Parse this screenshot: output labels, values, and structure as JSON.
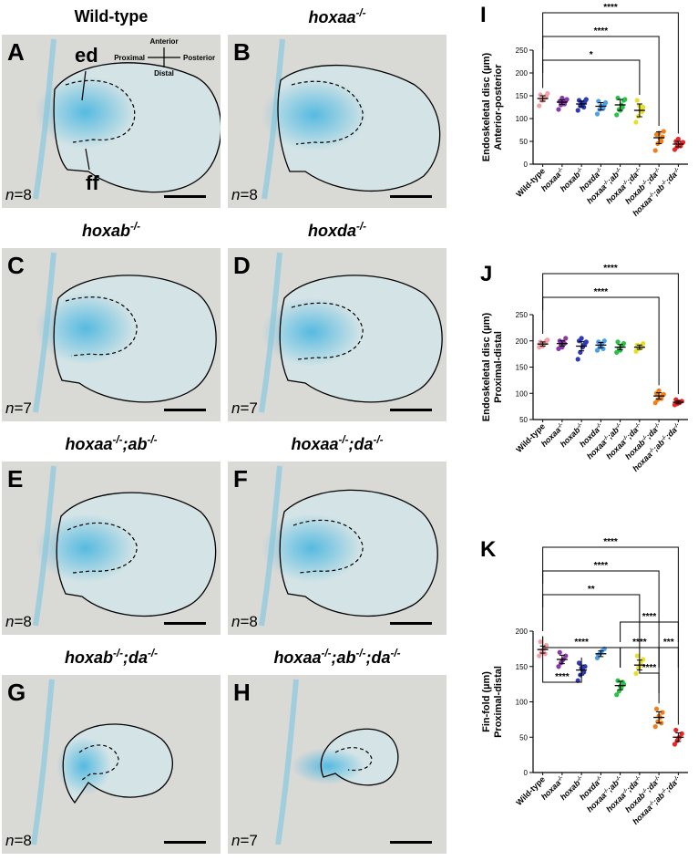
{
  "panels": [
    {
      "letter": "A",
      "title": "Wild-type",
      "italic": false,
      "n": "=8"
    },
    {
      "letter": "B",
      "title": "hoxaa",
      "sup": "-/-",
      "italic": true,
      "n": "=8"
    },
    {
      "letter": "C",
      "title": "hoxab",
      "sup": "-/-",
      "italic": true,
      "n": "=7"
    },
    {
      "letter": "D",
      "title": "hoxda",
      "sup": "-/-",
      "italic": true,
      "n": "=7"
    },
    {
      "letter": "E",
      "title": "hoxaa-/-;ab-/-",
      "italic": true,
      "n": "=8"
    },
    {
      "letter": "F",
      "title": "hoxaa-/-;da-/-",
      "italic": true,
      "n": "=8"
    },
    {
      "letter": "G",
      "title": "hoxab-/-;da-/-",
      "italic": true,
      "n": "=8"
    },
    {
      "letter": "H",
      "title": "hoxaa-/-;ab-/-;da-/-",
      "italic": true,
      "n": "=7"
    }
  ],
  "annotations": {
    "ed": "ed",
    "ff": "ff",
    "anterior": "Anterior",
    "posterior": "Posterior",
    "proximal": "Proximal",
    "distal": "Distal",
    "n_prefix": "n"
  },
  "genotypes": [
    "Wild-type",
    "hoxaa-/-",
    "hoxab-/-",
    "hoxda-/-",
    "hoxaa-/-;ab-/-",
    "hoxaa-/-;da-/-",
    "hoxab-/-;da-/-",
    "hoxaa-/-;ab-/-;da-/-"
  ],
  "colors": {
    "series": [
      "#f4a0a8",
      "#8a3aa6",
      "#2e3ab8",
      "#4ea0e6",
      "#2bc048",
      "#e6e02a",
      "#f0801c",
      "#e82828"
    ],
    "scalebar": "#000000",
    "stain": "#4fb8e0"
  },
  "chart_data": [
    {
      "letter": "I",
      "type": "scatter",
      "ylabel": "Endoskeletal disc (µm)",
      "ylabel2": "Anterior-posterior",
      "ylim": [
        0,
        250
      ],
      "yticks": [
        0,
        50,
        100,
        150,
        200,
        250
      ],
      "categories": [
        "Wild-type",
        "hoxaa-/-",
        "hoxab-/-",
        "hoxda-/-",
        "hoxaa-/-;ab-/-",
        "hoxaa-/-;da-/-",
        "hoxab-/-;da-/-",
        "hoxaa-/-;ab-/-;da-/-"
      ],
      "means": [
        144,
        136,
        132,
        127,
        130,
        118,
        58,
        44
      ],
      "errors": [
        6,
        5,
        6,
        8,
        12,
        14,
        13,
        6
      ],
      "points": [
        [
          128,
          140,
          145,
          150,
          152,
          140,
          146,
          155
        ],
        [
          120,
          130,
          135,
          140,
          138,
          145,
          132,
          142
        ],
        [
          118,
          128,
          132,
          138,
          140,
          135,
          125,
          142
        ],
        [
          110,
          120,
          125,
          130,
          138,
          128,
          122,
          135
        ],
        [
          108,
          120,
          130,
          140,
          145,
          118,
          125,
          142
        ],
        [
          92,
          105,
          118,
          125,
          140,
          128,
          115
        ],
        [
          30,
          45,
          55,
          60,
          65,
          68,
          50,
          72
        ],
        [
          32,
          38,
          42,
          46,
          50,
          55,
          40,
          48
        ]
      ],
      "brackets": [
        {
          "from": 0,
          "to": 7,
          "label": "****"
        },
        {
          "from": 0,
          "to": 6,
          "label": "****"
        },
        {
          "from": 0,
          "to": 5,
          "label": "*"
        }
      ]
    },
    {
      "letter": "J",
      "type": "scatter",
      "ylabel": "Endoskeletal disc (µm)",
      "ylabel2": "Proximal-distal",
      "ylim": [
        50,
        250
      ],
      "yticks": [
        50,
        100,
        150,
        200,
        250
      ],
      "categories": [
        "Wild-type",
        "hoxaa-/-",
        "hoxab-/-",
        "hoxda-/-",
        "hoxaa-/-;ab-/-",
        "hoxaa-/-;da-/-",
        "hoxab-/-;da-/-",
        "hoxaa-/-;ab-/-;da-/-"
      ],
      "means": [
        194,
        195,
        190,
        192,
        188,
        188,
        95,
        83
      ],
      "errors": [
        4,
        5,
        9,
        5,
        5,
        4,
        6,
        3
      ],
      "points": [
        [
          188,
          192,
          195,
          200,
          198,
          190,
          196,
          202
        ],
        [
          185,
          192,
          198,
          205,
          200,
          188,
          195
        ],
        [
          165,
          178,
          188,
          195,
          200,
          205,
          192,
          198
        ],
        [
          182,
          188,
          195,
          200,
          198,
          190,
          185
        ],
        [
          178,
          185,
          190,
          195,
          198,
          182,
          192
        ],
        [
          180,
          185,
          190,
          195,
          192,
          186,
          188
        ],
        [
          82,
          88,
          92,
          96,
          100,
          105,
          90,
          98
        ],
        [
          78,
          80,
          82,
          85,
          88,
          84
        ]
      ],
      "brackets": [
        {
          "from": 0,
          "to": 7,
          "label": "****"
        },
        {
          "from": 0,
          "to": 6,
          "label": "****"
        }
      ]
    },
    {
      "letter": "K",
      "type": "scatter",
      "ylabel": "Fin-fold (µm)",
      "ylabel2": "Proximal-distal",
      "ylim": [
        0,
        200
      ],
      "yticks": [
        0,
        50,
        100,
        150,
        200
      ],
      "categories": [
        "Wild-type",
        "hoxaa-/-",
        "hoxab-/-",
        "hoxda-/-",
        "hoxaa-/-;ab-/-",
        "hoxaa-/-;da-/-",
        "hoxab-/-;da-/-",
        "hoxaa-/-;ab-/-;da-/-"
      ],
      "means": [
        174,
        160,
        145,
        168,
        123,
        152,
        78,
        50
      ],
      "errors": [
        5,
        6,
        7,
        4,
        6,
        7,
        8,
        6
      ],
      "points": [
        [
          165,
          170,
          175,
          180,
          185,
          172,
          168
        ],
        [
          150,
          155,
          160,
          165,
          170,
          158
        ],
        [
          130,
          138,
          145,
          150,
          155,
          148,
          142
        ],
        [
          162,
          168,
          172,
          175,
          166
        ],
        [
          110,
          115,
          120,
          125,
          130,
          122,
          128
        ],
        [
          140,
          148,
          155,
          160,
          165,
          150
        ],
        [
          65,
          72,
          78,
          85,
          90,
          80,
          70
        ],
        [
          40,
          45,
          50,
          55,
          60,
          48
        ]
      ],
      "brackets": [
        {
          "from": 0,
          "to": 7,
          "label": "****"
        },
        {
          "from": 0,
          "to": 6,
          "label": "****"
        },
        {
          "from": 0,
          "to": 5,
          "label": "**"
        },
        {
          "from": 4,
          "to": 7,
          "label": "****"
        },
        {
          "from": 0,
          "to": 4,
          "label": "****"
        },
        {
          "from": 4,
          "to": 6,
          "label": "****"
        },
        {
          "from": 6,
          "to": 7,
          "label": "***"
        },
        {
          "from": 0,
          "to": 2,
          "label": "****"
        },
        {
          "from": 5,
          "to": 6,
          "label": "****"
        }
      ]
    }
  ]
}
